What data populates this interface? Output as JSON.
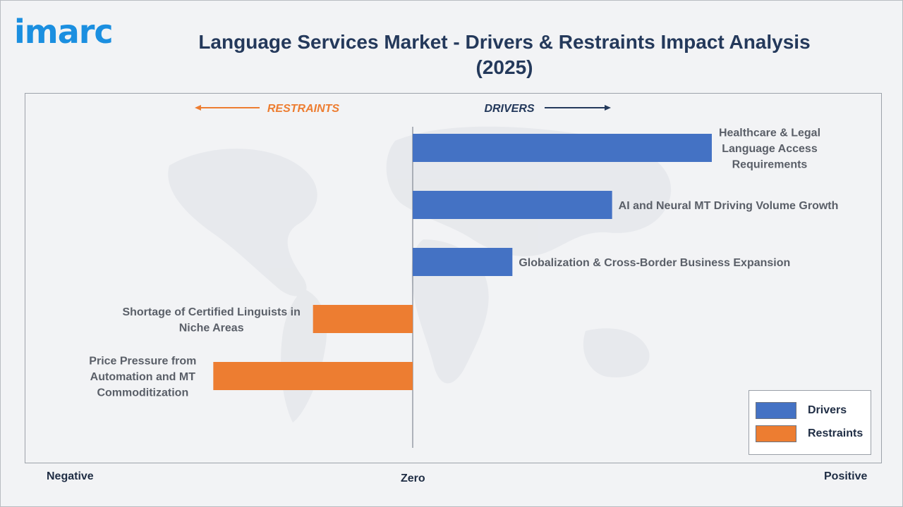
{
  "logo": "imarc",
  "title": "Language Services Market - Drivers & Restraints Impact Analysis (2025)",
  "header_labels": {
    "restraints": "RESTRAINTS",
    "drivers": "DRIVERS"
  },
  "axis_labels": {
    "negative": "Negative",
    "zero": "Zero",
    "positive": "Positive"
  },
  "legend": [
    {
      "label": "Drivers",
      "color": "#4472c4"
    },
    {
      "label": "Restraints",
      "color": "#ed7d31"
    }
  ],
  "colors": {
    "driver": "#4472c4",
    "restraint": "#ed7d31",
    "title": "#24395b",
    "arrow_restraints": "#ed7d31",
    "arrow_drivers": "#24395b"
  },
  "chart_data": {
    "type": "bar",
    "orientation": "horizontal",
    "xlim": [
      -1,
      1
    ],
    "items": [
      {
        "label_lines": [
          "Healthcare & Legal",
          "Language Access",
          "Requirements"
        ],
        "value": 0.63,
        "group": "Drivers"
      },
      {
        "label_lines": [
          "AI and Neural MT Driving Volume Growth"
        ],
        "value": 0.42,
        "group": "Drivers"
      },
      {
        "label_lines": [
          "Globalization & Cross-Border Business Expansion"
        ],
        "value": 0.21,
        "group": "Drivers"
      },
      {
        "label_lines": [
          "Shortage of Certified Linguists in",
          "Niche Areas"
        ],
        "value": -0.21,
        "group": "Restraints"
      },
      {
        "label_lines": [
          "Price Pressure from",
          "Automation and MT",
          "Commoditization"
        ],
        "value": -0.42,
        "group": "Restraints"
      }
    ]
  }
}
